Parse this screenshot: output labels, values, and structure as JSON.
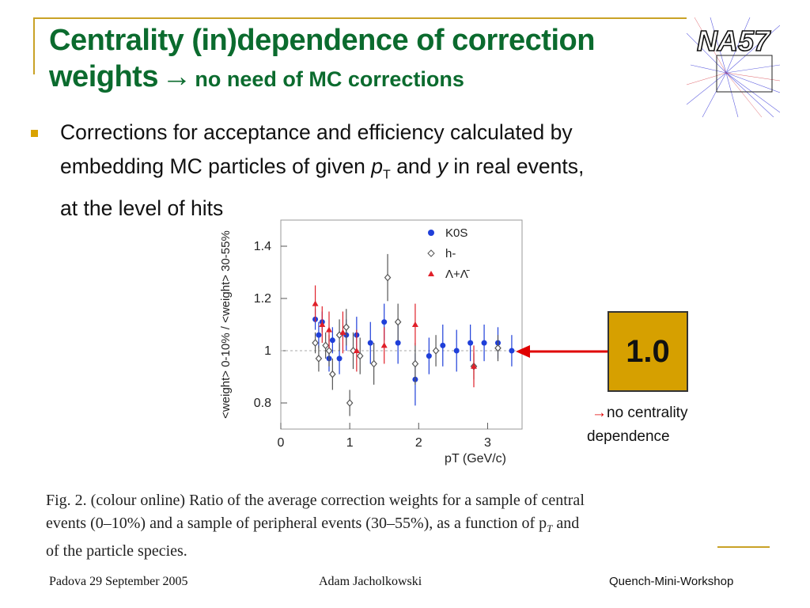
{
  "slide": {
    "title_line1": "Centrality (in)dependence of correction",
    "title_line2": "weights",
    "title_arrow": "→",
    "title_sub": "no need of MC corrections",
    "logo_text": "NA57",
    "bullet": {
      "line1": "Corrections for acceptance and efficiency calculated by",
      "line2_pre": "embedding MC particles of given ",
      "line2_p": "p",
      "line2_T": "T",
      "line2_mid": " and ",
      "line2_y": "y",
      "line2_post": " in real events,",
      "line3": "at the level of hits"
    },
    "highlight_value": "1.0",
    "note_arrow": "→",
    "note_line1": "no centrality",
    "note_line2": "dependence",
    "caption_line1": "Fig. 2. (colour online) Ratio of the average correction weights for a sample of central",
    "caption_line2": "events (0–10%) and a sample of peripheral events (30–55%), as a function of p",
    "caption_line2_sub": "T",
    "caption_line2_end": " and",
    "caption_line3": "of the particle species.",
    "footer_left": "Padova 29 September 2005",
    "footer_center": "Adam Jacholkowski",
    "footer_right": "Quench-Mini-Workshop"
  },
  "colors": {
    "title": "#0b6b2e",
    "accent": "#c9a227",
    "box": "#d6a000",
    "arrow": "#e00000",
    "k0s": "#1f3fd9",
    "hminus": "#555555",
    "lambda": "#e0202a"
  },
  "chart_data": {
    "type": "scatter",
    "xlabel": "p_T (GeV/c)",
    "ylabel": "<weight>_0-10% / <weight>_30-55%",
    "xlim": [
      0,
      3.5
    ],
    "ylim": [
      0.7,
      1.5
    ],
    "x_ticks": [
      "0",
      "1",
      "2",
      "3"
    ],
    "y_ticks": [
      "0.8",
      "1",
      "1.2",
      "1.4"
    ],
    "reference_line": 1.0,
    "legend": [
      "K0S",
      "h-",
      "Λ+Λ̄"
    ],
    "series": [
      {
        "name": "K0S",
        "marker": "circle",
        "x": [
          0.5,
          0.55,
          0.6,
          0.7,
          0.75,
          0.85,
          0.95,
          1.1,
          1.3,
          1.5,
          1.7,
          1.95,
          2.15,
          2.35,
          2.55,
          2.75,
          2.95,
          3.15,
          3.35
        ],
        "y": [
          1.12,
          1.06,
          1.11,
          0.97,
          1.04,
          0.97,
          1.06,
          1.06,
          1.03,
          1.11,
          1.03,
          0.89,
          0.98,
          1.02,
          1.0,
          1.03,
          1.03,
          1.03,
          1.0
        ],
        "err": [
          0.04,
          0.05,
          0.04,
          0.05,
          0.05,
          0.06,
          0.06,
          0.07,
          0.08,
          0.07,
          0.08,
          0.1,
          0.07,
          0.08,
          0.08,
          0.07,
          0.07,
          0.06,
          0.06
        ]
      },
      {
        "name": "h-",
        "marker": "open-diamond",
        "x": [
          0.5,
          0.55,
          0.65,
          0.7,
          0.75,
          0.85,
          0.95,
          1.0,
          1.05,
          1.15,
          1.35,
          1.55,
          1.7,
          1.95,
          2.25,
          2.8,
          3.15
        ],
        "y": [
          1.03,
          0.97,
          1.02,
          1.0,
          0.91,
          1.06,
          1.09,
          0.8,
          1.0,
          0.98,
          0.95,
          1.28,
          1.11,
          0.95,
          1.0,
          0.94,
          1.01
        ],
        "err": [
          0.04,
          0.05,
          0.05,
          0.06,
          0.06,
          0.06,
          0.07,
          0.05,
          0.07,
          0.07,
          0.08,
          0.09,
          0.07,
          0.08,
          0.06,
          0.05,
          0.05
        ]
      },
      {
        "name": "Λ+Λ̄",
        "marker": "triangle",
        "x": [
          0.5,
          0.6,
          0.7,
          0.9,
          1.1,
          1.5,
          1.95,
          2.8
        ],
        "y": [
          1.18,
          1.1,
          1.08,
          1.07,
          1.0,
          1.02,
          1.1,
          0.94
        ],
        "err": [
          0.07,
          0.07,
          0.07,
          0.08,
          0.08,
          0.07,
          0.08,
          0.08
        ]
      }
    ]
  }
}
